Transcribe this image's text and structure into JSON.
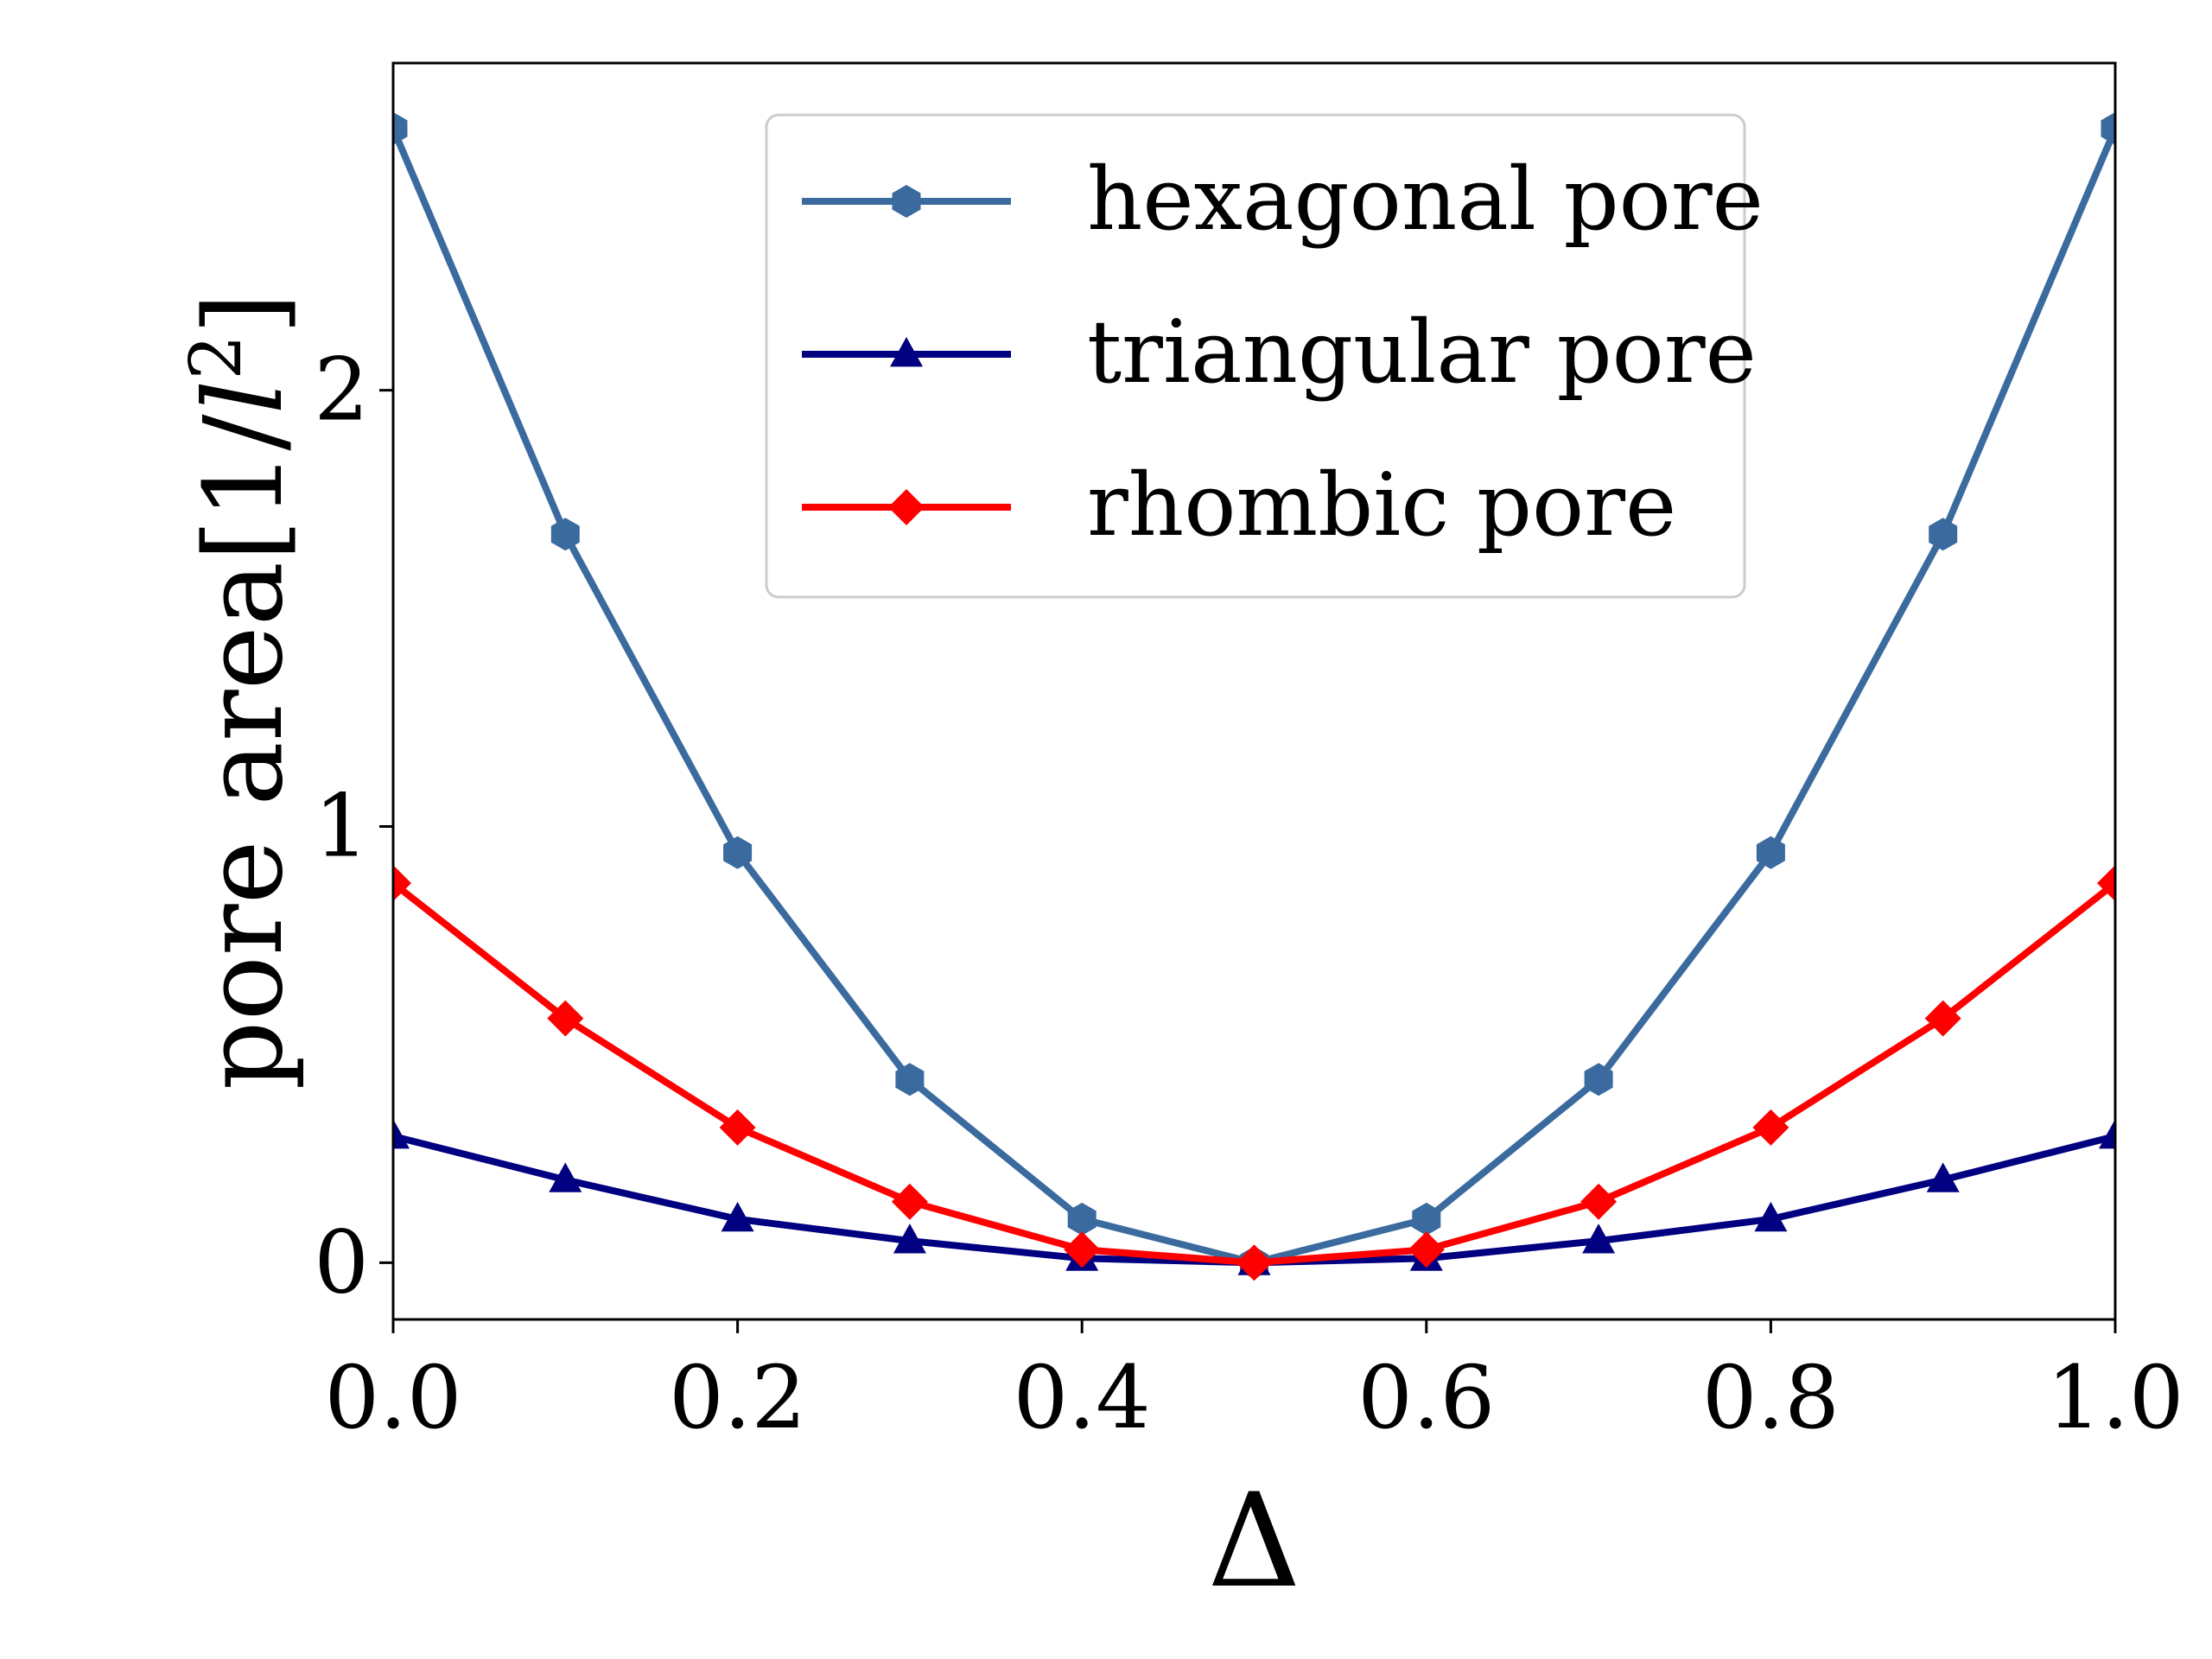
{
  "chart_data": {
    "type": "line",
    "xlabel": "Δ",
    "ylabel": {
      "main": "pore area",
      "units_prefix": "[1/",
      "units_var": "l",
      "units_exp": "2",
      "units_suffix": "]"
    },
    "xlim": [
      0.0,
      1.0
    ],
    "ylim": [
      -0.13,
      2.75
    ],
    "xticks": [
      0.0,
      0.2,
      0.4,
      0.6,
      0.8,
      1.0
    ],
    "xtick_labels": [
      "0.0",
      "0.2",
      "0.4",
      "0.6",
      "0.8",
      "1.0"
    ],
    "yticks": [
      0,
      1,
      2
    ],
    "ytick_labels": [
      "0",
      "1",
      "2"
    ],
    "grid": false,
    "legend_position": "top-center",
    "x": [
      0.0,
      0.1,
      0.2,
      0.3,
      0.4,
      0.5,
      0.6,
      0.7,
      0.8,
      0.9,
      1.0
    ],
    "series": [
      {
        "name": "hexagonal pore",
        "color": "#3a6a9e",
        "marker": "hexagon",
        "values": [
          2.6,
          1.67,
          0.94,
          0.42,
          0.1,
          0.0,
          0.1,
          0.42,
          0.94,
          1.67,
          2.6
        ]
      },
      {
        "name": "triangular pore",
        "color": "#000080",
        "marker": "triangle",
        "values": [
          0.29,
          0.19,
          0.1,
          0.05,
          0.01,
          0.0,
          0.01,
          0.05,
          0.1,
          0.19,
          0.29
        ]
      },
      {
        "name": "rhombic pore",
        "color": "#ff0000",
        "marker": "diamond",
        "values": [
          0.87,
          0.56,
          0.31,
          0.14,
          0.03,
          0.0,
          0.03,
          0.14,
          0.31,
          0.56,
          0.87
        ]
      }
    ]
  }
}
